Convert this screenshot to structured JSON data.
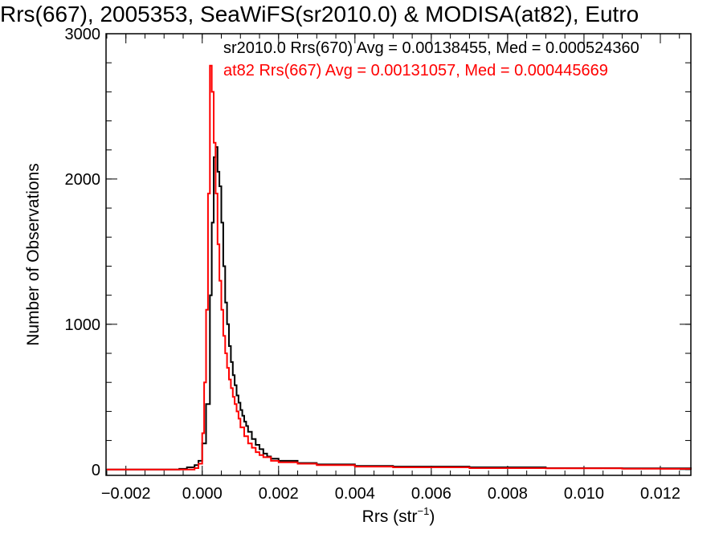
{
  "chart_data": {
    "type": "line",
    "title": "Rrs(667), 2005353, SeaWiFS(sr2010.0) & MODISA(at82), Eutro",
    "xlabel": "Rrs (str",
    "xlabel_sup": "−1",
    "xlabel_end": ")",
    "ylabel": "Number of Observations",
    "xlim": [
      -0.00252,
      0.0128
    ],
    "ylim": [
      -40,
      3000
    ],
    "grid": false,
    "x_ticks": [
      {
        "value": -0.002,
        "label": "−0.002"
      },
      {
        "value": 0.0,
        "label": "0.000"
      },
      {
        "value": 0.002,
        "label": "0.002"
      },
      {
        "value": 0.004,
        "label": "0.004"
      },
      {
        "value": 0.006,
        "label": "0.006"
      },
      {
        "value": 0.008,
        "label": "0.008"
      },
      {
        "value": 0.01,
        "label": "0.010"
      },
      {
        "value": 0.012,
        "label": "0.012"
      }
    ],
    "y_ticks": [
      {
        "value": 0,
        "label": "0"
      },
      {
        "value": 1000,
        "label": "1000"
      },
      {
        "value": 2000,
        "label": "2000"
      },
      {
        "value": 3000,
        "label": "3000"
      }
    ],
    "x_minor_step": 0.0005,
    "y_minor_step": 200,
    "series": [
      {
        "name": "sr2010.0 Rrs(670) Avg = 0.00138455, Med = 0.000524360",
        "color": "#000000",
        "step": "histogram",
        "x": [
          -0.0025,
          -0.0006,
          -0.0004,
          -0.0002,
          -0.0001,
          0.0,
          0.0001,
          0.0002,
          0.00025,
          0.0003,
          0.00035,
          0.0004,
          0.00045,
          0.0005,
          0.00055,
          0.0006,
          0.00065,
          0.0007,
          0.00075,
          0.0008,
          0.00085,
          0.0009,
          0.00095,
          0.001,
          0.00105,
          0.0011,
          0.00115,
          0.0012,
          0.0013,
          0.0014,
          0.0015,
          0.0016,
          0.0017,
          0.0018,
          0.002,
          0.0025,
          0.003,
          0.004,
          0.005,
          0.006,
          0.007,
          0.008,
          0.009,
          0.01,
          0.011,
          0.012,
          0.0128
        ],
        "y": [
          0,
          5,
          15,
          30,
          60,
          180,
          450,
          1200,
          1700,
          2150,
          2220,
          2050,
          1950,
          1700,
          1400,
          1150,
          1000,
          850,
          740,
          650,
          580,
          510,
          460,
          410,
          370,
          330,
          300,
          260,
          210,
          170,
          140,
          110,
          90,
          75,
          60,
          45,
          35,
          25,
          20,
          20,
          15,
          15,
          10,
          10,
          8,
          8,
          0
        ]
      },
      {
        "name": "at82 Rrs(667) Avg = 0.00131057, Med = 0.000445669",
        "color": "#ff0000",
        "step": "histogram",
        "x": [
          -0.0025,
          -0.0002,
          -0.0001,
          0.0,
          5e-05,
          0.0001,
          0.00015,
          0.0002,
          0.00025,
          0.0003,
          0.00035,
          0.0004,
          0.00045,
          0.0005,
          0.00055,
          0.0006,
          0.00065,
          0.0007,
          0.00075,
          0.0008,
          0.00085,
          0.0009,
          0.00095,
          0.001,
          0.0011,
          0.0012,
          0.0013,
          0.0014,
          0.0015,
          0.0016,
          0.0018,
          0.002,
          0.0025,
          0.003,
          0.004,
          0.005,
          0.006,
          0.007,
          0.008,
          0.009,
          0.01,
          0.011,
          0.012,
          0.0128
        ],
        "y": [
          0,
          10,
          40,
          250,
          600,
          1100,
          1900,
          2780,
          2600,
          2250,
          1900,
          1550,
          1300,
          1100,
          920,
          800,
          700,
          620,
          560,
          500,
          450,
          400,
          350,
          290,
          230,
          180,
          150,
          120,
          100,
          85,
          60,
          50,
          40,
          30,
          20,
          15,
          15,
          10,
          10,
          8,
          8,
          6,
          5,
          0
        ]
      }
    ]
  }
}
